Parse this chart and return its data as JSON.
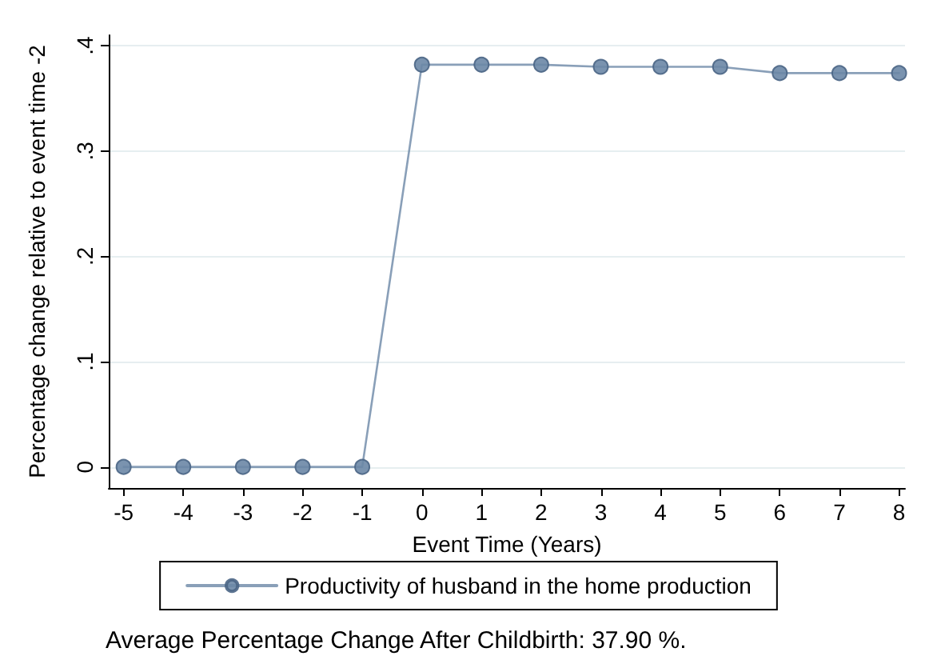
{
  "chart_data": {
    "type": "line",
    "xlabel": "Event Time (Years)",
    "ylabel": "Percentage change relative to event time -2",
    "x": [
      -5,
      -4,
      -3,
      -2,
      -1,
      0,
      1,
      2,
      3,
      4,
      5,
      6,
      7,
      8
    ],
    "series": [
      {
        "name": "Productivity of husband in the home production",
        "color": "#6b87a6",
        "values": [
          0,
          0,
          0,
          0,
          0,
          0.382,
          0.382,
          0.382,
          0.38,
          0.38,
          0.38,
          0.374,
          0.374,
          0.374
        ]
      }
    ],
    "xlim": [
      -5.25,
      8.1
    ],
    "xticks": [
      -5,
      -4,
      -3,
      -2,
      -1,
      0,
      1,
      2,
      3,
      4,
      5,
      6,
      7,
      8
    ],
    "ylim": [
      -0.02,
      0.41
    ],
    "yticks": [
      {
        "value": 0,
        "label": "0"
      },
      {
        "value": 0.1,
        "label": ".1"
      },
      {
        "value": 0.2,
        "label": ".2"
      },
      {
        "value": 0.3,
        "label": ".3"
      },
      {
        "value": 0.4,
        "label": ".4"
      }
    ],
    "grid": "y",
    "legend": "bottom",
    "marker": "circle",
    "line_style": "solid",
    "annotations": [
      "Average Percentage Change After Childbirth: 37.90 %."
    ]
  }
}
